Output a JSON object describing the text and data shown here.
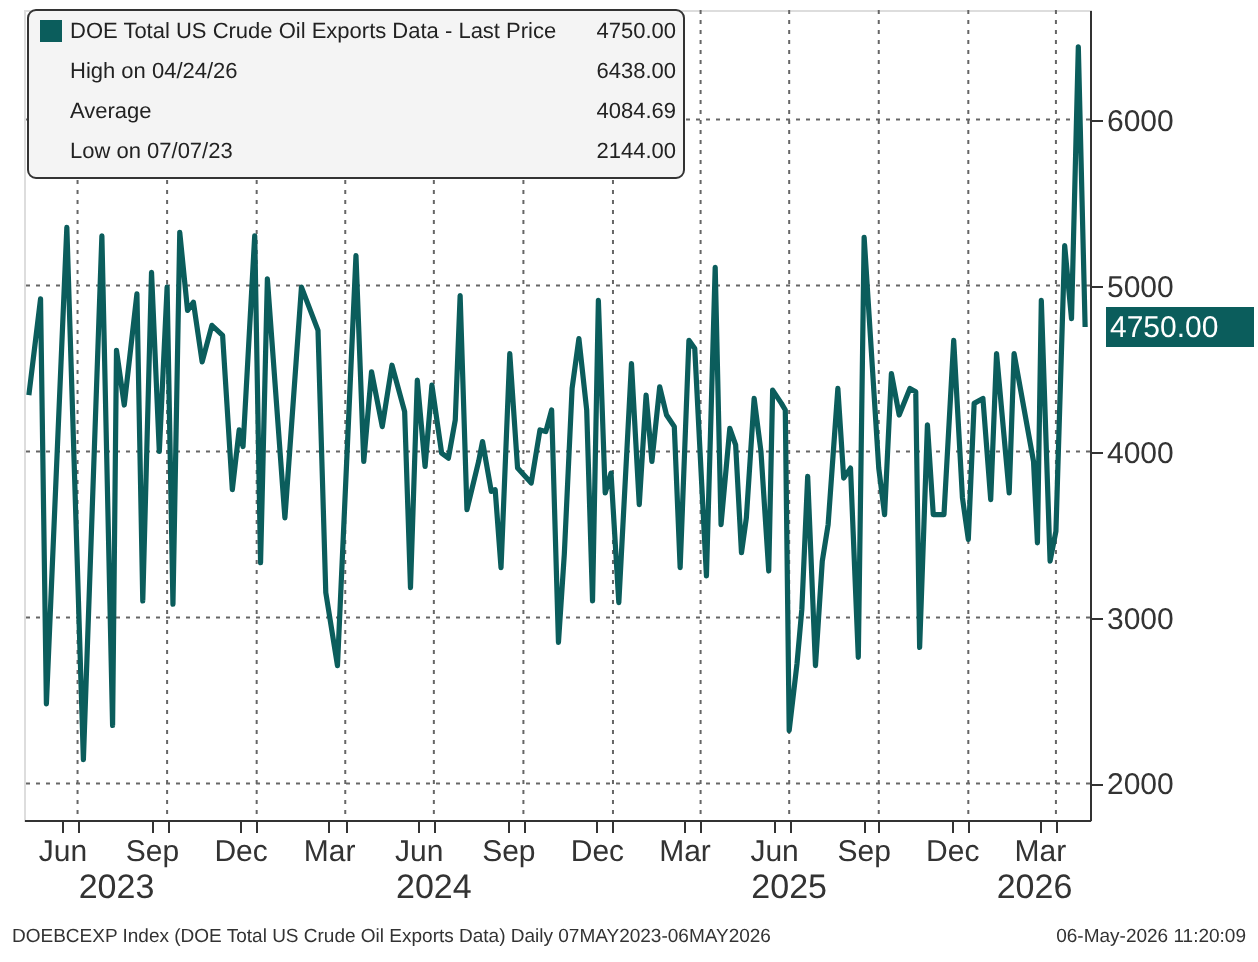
{
  "chart_data": {
    "type": "line",
    "series": [
      {
        "name": "DOE Total US Crude Oil Exports Data - Last Price",
        "color": "#0b5d5c",
        "x": [
          "2023-05-12",
          "2023-05-24",
          "2023-05-30",
          "2023-06-20",
          "2023-07-07",
          "2023-07-26",
          "2023-08-06",
          "2023-08-10",
          "2023-08-18",
          "2023-08-31",
          "2023-09-06",
          "2023-09-15",
          "2023-09-23",
          "2023-10-01",
          "2023-10-07",
          "2023-10-14",
          "2023-10-22",
          "2023-10-28",
          "2023-11-06",
          "2023-11-16",
          "2023-11-27",
          "2023-12-07",
          "2023-12-14",
          "2023-12-18",
          "2023-12-30",
          "2024-01-05",
          "2024-01-12",
          "2024-01-30",
          "2024-02-16",
          "2024-03-04",
          "2024-03-12",
          "2024-03-24",
          "2024-04-12",
          "2024-04-20",
          "2024-04-28",
          "2024-05-09",
          "2024-05-19",
          "2024-06-01",
          "2024-06-07",
          "2024-06-14",
          "2024-06-22",
          "2024-06-29",
          "2024-07-09",
          "2024-07-16",
          "2024-07-23",
          "2024-07-28",
          "2024-08-04",
          "2024-08-16",
          "2024-08-20",
          "2024-08-29",
          "2024-09-02",
          "2024-09-08",
          "2024-09-17",
          "2024-09-25",
          "2024-10-09",
          "2024-10-18",
          "2024-10-24",
          "2024-10-30",
          "2024-11-06",
          "2024-11-12",
          "2024-11-20",
          "2024-11-27",
          "2024-12-05",
          "2024-12-11",
          "2024-12-17",
          "2024-12-24",
          "2024-12-30",
          "2025-01-07",
          "2025-01-20",
          "2025-01-28",
          "2025-02-04",
          "2025-02-10",
          "2025-02-18",
          "2025-02-25",
          "2025-03-05",
          "2025-03-11",
          "2025-03-20",
          "2025-03-26",
          "2025-04-07",
          "2025-04-16",
          "2025-04-22",
          "2025-05-01",
          "2025-05-07",
          "2025-05-13",
          "2025-05-18",
          "2025-05-26",
          "2025-06-02",
          "2025-06-10",
          "2025-06-14",
          "2025-06-23",
          "2025-06-27",
          "2025-07-01",
          "2025-07-09",
          "2025-07-14",
          "2025-07-20",
          "2025-07-28",
          "2025-08-04",
          "2025-08-10",
          "2025-08-20",
          "2025-08-26",
          "2025-09-02",
          "2025-09-10",
          "2025-09-16",
          "2025-10-01",
          "2025-10-07",
          "2025-10-14",
          "2025-10-22",
          "2025-11-02",
          "2025-11-08",
          "2025-11-12",
          "2025-11-20",
          "2025-11-26",
          "2025-12-07",
          "2025-12-17",
          "2025-12-26",
          "2026-01-01",
          "2026-01-07",
          "2026-01-16",
          "2026-01-24",
          "2026-01-30",
          "2026-02-12",
          "2026-02-17",
          "2026-03-09",
          "2026-03-13",
          "2026-03-17",
          "2026-03-26",
          "2026-04-01",
          "2026-04-10",
          "2026-04-17",
          "2026-04-24",
          "2026-05-01"
        ],
        "values": [
          4340,
          4920,
          2480,
          5350,
          2144,
          5300,
          2350,
          4610,
          4280,
          4950,
          3100,
          5080,
          4000,
          4990,
          3080,
          5320,
          4850,
          4900,
          4540,
          4760,
          4700,
          3770,
          4130,
          4030,
          5300,
          3330,
          5040,
          3600,
          4990,
          4730,
          3150,
          2710,
          5180,
          3940,
          4480,
          4150,
          4520,
          4240,
          3180,
          4430,
          3910,
          4400,
          3990,
          3960,
          4190,
          4940,
          3650,
          3940,
          4060,
          3760,
          3770,
          3300,
          4590,
          3900,
          3810,
          4130,
          4120,
          4250,
          2850,
          3380,
          4380,
          4680,
          4250,
          3100,
          4910,
          3750,
          3870,
          3090,
          4530,
          3680,
          4340,
          3940,
          4390,
          4220,
          4150,
          3300,
          4670,
          4620,
          3250,
          5110,
          3560,
          4140,
          4040,
          3390,
          3600,
          4320,
          4000,
          3280,
          4370,
          4290,
          4250,
          2320,
          2720,
          3050,
          3850,
          2710,
          3340,
          3560,
          4380,
          3840,
          3900,
          2760,
          5290,
          3900,
          3620,
          4470,
          4220,
          4380,
          4360,
          2820,
          4160,
          3620,
          3620,
          4670,
          3720,
          3470,
          4290,
          4320,
          3710,
          4590,
          3750,
          4590,
          3940,
          3450,
          4910,
          3340,
          3520,
          5240,
          4800,
          6438,
          4750
        ]
      }
    ],
    "xlim": [
      "2023-05-07",
      "2026-05-06"
    ],
    "xticks": [
      {
        "value": "2023-06-15",
        "label": "Jun"
      },
      {
        "value": "2023-07-01",
        "label": null
      },
      {
        "value": "2023-09-15",
        "label": "Sep"
      },
      {
        "value": "2023-10-01",
        "label": null
      },
      {
        "value": "2023-12-15",
        "label": "Dec"
      },
      {
        "value": "2024-01-01",
        "label": null
      },
      {
        "value": "2024-03-15",
        "label": "Mar"
      },
      {
        "value": "2024-04-01",
        "label": null
      },
      {
        "value": "2024-06-15",
        "label": "Jun"
      },
      {
        "value": "2024-07-01",
        "label": null
      },
      {
        "value": "2024-09-15",
        "label": "Sep"
      },
      {
        "value": "2024-10-01",
        "label": null
      },
      {
        "value": "2024-12-15",
        "label": "Dec"
      },
      {
        "value": "2025-01-01",
        "label": null
      },
      {
        "value": "2025-03-15",
        "label": "Mar"
      },
      {
        "value": "2025-04-01",
        "label": null
      },
      {
        "value": "2025-06-15",
        "label": "Jun"
      },
      {
        "value": "2025-07-01",
        "label": null
      },
      {
        "value": "2025-09-15",
        "label": "Sep"
      },
      {
        "value": "2025-10-01",
        "label": null
      },
      {
        "value": "2025-12-15",
        "label": "Dec"
      },
      {
        "value": "2026-01-01",
        "label": null
      },
      {
        "value": "2026-03-15",
        "label": "Mar"
      },
      {
        "value": "2026-04-01",
        "label": null
      }
    ],
    "x2lim": [
      "2023-05-07",
      "2026-05-06"
    ],
    "x2ticks": [
      {
        "value": "2023-08-10",
        "label": "2023"
      },
      {
        "value": "2024-07-01",
        "label": "2024"
      },
      {
        "value": "2025-07-01",
        "label": "2025"
      },
      {
        "value": "2026-03-10",
        "label": "2026"
      }
    ],
    "ylim": [
      1780,
      6660
    ],
    "yticks": [
      2000,
      3000,
      4000,
      5000,
      6000
    ],
    "grid": true,
    "legend": "top left",
    "line_style": "solid",
    "marker": "none",
    "annotations": [
      "4750.00",
      "High on 04/24/26",
      "6438.00",
      "Average",
      "4084.69",
      "Low on 07/07/23",
      "2144.00",
      "DOEBCEXP Index (DOE Total US Crude Oil Exports Data) Daily 07MAY2023-06MAY2026",
      "06-May-2026 11:20:09",
      {
        "text": "4750.00",
        "x": "2026-05-01",
        "y": 4750
      }
    ]
  }
}
